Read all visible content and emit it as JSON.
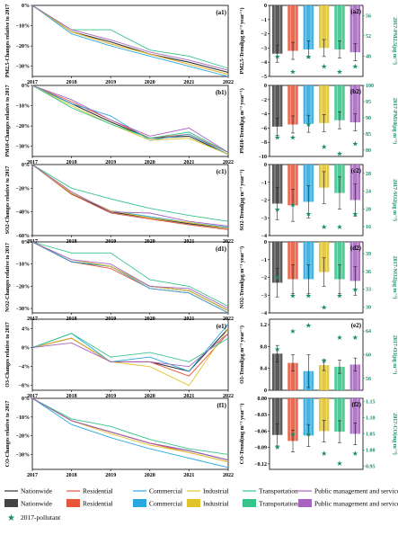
{
  "colors": {
    "nationwide": "#333333",
    "residential": "#e8553a",
    "commercial": "#29a8e0",
    "industrial": "#e0c32a",
    "transportation": "#35c48a",
    "public": "#a764c2",
    "star": "#1a8c6b"
  },
  "legend": {
    "nationwide": "Nationwide",
    "residential": "Residential",
    "commercial": "Commercial",
    "industrial": "Industrial",
    "transportation": "Transportation",
    "public": "Public management and service",
    "star": "2017-pollutant"
  },
  "chart_data": [
    {
      "type": "line",
      "panel": "(a1)",
      "ylabel": "PM2.5-Changes relative to 2017",
      "x": [
        "2017",
        "2018",
        "2019",
        "2020",
        "2021",
        "2022"
      ],
      "ylim": [
        -35,
        0
      ],
      "yticks": [
        0,
        -10,
        -20,
        -30
      ],
      "ytick_labels": [
        "0%",
        "-10%",
        "-20%",
        "-30%"
      ],
      "series": [
        {
          "name": "Nationwide",
          "values": [
            0,
            -13,
            -18,
            -24,
            -28,
            -33
          ]
        },
        {
          "name": "Residential",
          "values": [
            0,
            -13,
            -19,
            -24,
            -29,
            -34
          ]
        },
        {
          "name": "Commercial",
          "values": [
            0,
            -14,
            -20,
            -25,
            -30,
            -35
          ]
        },
        {
          "name": "Industrial",
          "values": [
            0,
            -13,
            -19,
            -24,
            -29,
            -34
          ]
        },
        {
          "name": "Transportation",
          "values": [
            0,
            -12,
            -12,
            -22,
            -25,
            -31
          ]
        },
        {
          "name": "Public management and service",
          "values": [
            0,
            -12,
            -17,
            -23,
            -27,
            -32
          ]
        }
      ]
    },
    {
      "type": "bar",
      "panel": "(a2)",
      "ylabel": "PM2.5-Trend(μg m⁻³ year⁻¹)",
      "y2label": "2017-PM2.5(μg m⁻³)",
      "ylim": [
        -5,
        0
      ],
      "yticks": [
        0,
        -1,
        -2,
        -3,
        -4,
        -5
      ],
      "y2lim": [
        44,
        58
      ],
      "y2ticks": [
        48,
        52,
        56
      ],
      "values": [
        -3.4,
        -3.2,
        -3.1,
        -3.0,
        -3.1,
        -3.3
      ],
      "errors": [
        0.6,
        0.6,
        0.6,
        0.6,
        0.6,
        0.6
      ],
      "pollutant_2017": [
        48,
        45,
        48,
        46,
        45,
        46
      ]
    },
    {
      "type": "line",
      "panel": "(b1)",
      "ylabel": "PM10-Changes relative to 2017",
      "x": [
        "2017",
        "2018",
        "2019",
        "2020",
        "2021",
        "2022"
      ],
      "ylim": [
        -35,
        0
      ],
      "yticks": [
        0,
        -10,
        -20,
        -30
      ],
      "ytick_labels": [
        "0%",
        "-10%",
        "-20%",
        "-30%"
      ],
      "series": [
        {
          "name": "Nationwide",
          "values": [
            0,
            -9,
            -18,
            -26,
            -25,
            -34
          ]
        },
        {
          "name": "Residential",
          "values": [
            0,
            -8,
            -17,
            -26,
            -24,
            -33
          ]
        },
        {
          "name": "Commercial",
          "values": [
            0,
            -9,
            -15,
            -27,
            -24,
            -34
          ]
        },
        {
          "name": "Industrial",
          "values": [
            0,
            -10,
            -19,
            -27,
            -26,
            -34
          ]
        },
        {
          "name": "Transportation",
          "values": [
            0,
            -11,
            -19,
            -26,
            -23,
            -33
          ]
        },
        {
          "name": "Public management and service",
          "values": [
            0,
            -7,
            -17,
            -25,
            -21,
            -33
          ]
        }
      ]
    },
    {
      "type": "bar",
      "panel": "(b2)",
      "ylabel": "PM10-Trend(μg m⁻³ year⁻¹)",
      "y2label": "2017-PM10(μg m⁻³)",
      "ylim": [
        -10,
        0
      ],
      "yticks": [
        0,
        -2,
        -4,
        -6,
        -8,
        -10
      ],
      "y2lim": [
        78,
        100
      ],
      "y2ticks": [
        80,
        85,
        90,
        95,
        100
      ],
      "values": [
        -5.8,
        -5.5,
        -5.4,
        -5.3,
        -4.9,
        -5.2
      ],
      "errors": [
        1.2,
        1.2,
        1.2,
        1.2,
        1.2,
        1.2
      ],
      "pollutant_2017": [
        84,
        84,
        88,
        81,
        79,
        82
      ]
    },
    {
      "type": "line",
      "panel": "(c1)",
      "ylabel": "SO2-Changes relative to 2017",
      "x": [
        "2017",
        "2018",
        "2019",
        "2020",
        "2021",
        "2022"
      ],
      "ylim": [
        -60,
        0
      ],
      "yticks": [
        0,
        -20,
        -40,
        -60
      ],
      "ytick_labels": [
        "0%",
        "-20%",
        "-40%",
        "-60%"
      ],
      "series": [
        {
          "name": "Nationwide",
          "values": [
            0,
            -25,
            -40,
            -45,
            -50,
            -54
          ]
        },
        {
          "name": "Residential",
          "values": [
            0,
            -25,
            -41,
            -46,
            -51,
            -55
          ]
        },
        {
          "name": "Commercial",
          "values": [
            0,
            -24,
            -39,
            -44,
            -49,
            -53
          ]
        },
        {
          "name": "Industrial",
          "values": [
            0,
            -24,
            -39,
            -45,
            -49,
            -54
          ]
        },
        {
          "name": "Transportation",
          "values": [
            0,
            -20,
            -29,
            -37,
            -43,
            -48
          ]
        },
        {
          "name": "Public management and service",
          "values": [
            0,
            -23,
            -40,
            -41,
            -48,
            -52
          ]
        }
      ]
    },
    {
      "type": "bar",
      "panel": "(c2)",
      "ylabel": "SO2-Trend(μg m⁻³ year⁻¹)",
      "y2label": "2017-SO2(μg m⁻³)",
      "ylim": [
        -4,
        0
      ],
      "yticks": [
        0,
        -1,
        -2,
        -3,
        -4
      ],
      "y2lim": [
        14,
        30
      ],
      "y2ticks": [
        16,
        20,
        24,
        28
      ],
      "values": [
        -2.2,
        -2.3,
        -2.1,
        -1.3,
        -1.6,
        -2.0
      ],
      "errors": [
        0.9,
        0.9,
        0.9,
        0.9,
        0.9,
        0.9
      ],
      "pollutant_2017": [
        20,
        21,
        19,
        16,
        16,
        19
      ]
    },
    {
      "type": "line",
      "panel": "(d1)",
      "ylabel": "NO2-Changes relative to 2017",
      "x": [
        "2017",
        "2018",
        "2019",
        "2020",
        "2021",
        "2022"
      ],
      "ylim": [
        -32,
        0
      ],
      "yticks": [
        0,
        -10,
        -20,
        -30
      ],
      "ytick_labels": [
        "0%",
        "-10%",
        "-20%",
        "-30%"
      ],
      "series": [
        {
          "name": "Nationwide",
          "values": [
            0,
            -9,
            -11,
            -20,
            -22,
            -31
          ]
        },
        {
          "name": "Residential",
          "values": [
            0,
            -9,
            -12,
            -21,
            -23,
            -32
          ]
        },
        {
          "name": "Commercial",
          "values": [
            0,
            -9,
            -11,
            -21,
            -23,
            -32
          ]
        },
        {
          "name": "Industrial",
          "values": [
            0,
            -8,
            -11,
            -20,
            -22,
            -31
          ]
        },
        {
          "name": "Transportation",
          "values": [
            0,
            -5,
            -5,
            -17,
            -20,
            -29
          ]
        },
        {
          "name": "Public management and service",
          "values": [
            0,
            -8,
            -10,
            -20,
            -21,
            -30
          ]
        }
      ]
    },
    {
      "type": "bar",
      "panel": "(d2)",
      "ylabel": "NO2-Trend(μg m⁻³ year⁻¹)",
      "y2label": "2017-NO2(μg m⁻³)",
      "ylim": [
        -4,
        0
      ],
      "yticks": [
        0,
        -1,
        -2,
        -3,
        -4
      ],
      "y2lim": [
        29,
        41
      ],
      "y2ticks": [
        30,
        33,
        36,
        39
      ],
      "values": [
        -2.3,
        -2.1,
        -2.1,
        -1.7,
        -2.1,
        -2.2
      ],
      "errors": [
        0.8,
        0.8,
        0.8,
        0.8,
        0.8,
        0.8
      ],
      "pollutant_2017": [
        35,
        32,
        32,
        30,
        32,
        33
      ]
    },
    {
      "type": "line",
      "panel": "(e1)",
      "ylabel": "O3-Changes relative to 2017",
      "x": [
        "2017",
        "2018",
        "2019",
        "2020",
        "2021",
        "2022"
      ],
      "ylim": [
        -9,
        6
      ],
      "yticks": [
        4,
        0,
        -4,
        -8
      ],
      "ytick_labels": [
        "4%",
        "0%",
        "-4%",
        "-8%"
      ],
      "series": [
        {
          "name": "Nationwide",
          "values": [
            0,
            2,
            -3,
            -3,
            -5,
            4
          ]
        },
        {
          "name": "Residential",
          "values": [
            0,
            2,
            -3,
            -3,
            -6,
            3
          ]
        },
        {
          "name": "Commercial",
          "values": [
            0,
            3,
            -3,
            -2,
            -5,
            5
          ]
        },
        {
          "name": "Industrial",
          "values": [
            0,
            2,
            -3,
            -4,
            -8,
            4
          ]
        },
        {
          "name": "Transportation",
          "values": [
            0,
            3,
            -2,
            -1,
            -3,
            2
          ]
        },
        {
          "name": "Public management and service",
          "values": [
            0,
            1,
            -3,
            -3,
            -4,
            3
          ]
        }
      ]
    },
    {
      "type": "bar",
      "panel": "(e2)",
      "ylabel": "O3-Trend(μg m⁻³ year⁻¹)",
      "y2label": "2017-O3(μg m⁻³)",
      "ylim": [
        0,
        1.3
      ],
      "yticks": [
        0,
        0.4,
        0.8,
        1.2
      ],
      "y2lim": [
        54,
        66
      ],
      "y2ticks": [
        56,
        60,
        64
      ],
      "values": [
        0.67,
        0.5,
        0.35,
        0.46,
        0.43,
        0.47
      ],
      "errors": [
        0.15,
        0.15,
        0.3,
        0.1,
        0.12,
        0.12
      ],
      "pollutant_2017": [
        61,
        64,
        65,
        59,
        63,
        63
      ]
    },
    {
      "type": "line",
      "panel": "(f1)",
      "ylabel": "CO-Changes relative to 2017",
      "x": [
        "2017",
        "2018",
        "2019",
        "2020",
        "2021",
        "2022"
      ],
      "ylim": [
        -38,
        0
      ],
      "yticks": [
        0,
        -10,
        -20,
        -30
      ],
      "ytick_labels": [
        "0%",
        "-10%",
        "-20%",
        "-30%"
      ],
      "series": [
        {
          "name": "Nationwide",
          "values": [
            0,
            -12,
            -18,
            -24,
            -28,
            -33
          ]
        },
        {
          "name": "Residential",
          "values": [
            0,
            -12,
            -18,
            -24,
            -29,
            -34
          ]
        },
        {
          "name": "Commercial",
          "values": [
            0,
            -14,
            -21,
            -27,
            -32,
            -37
          ]
        },
        {
          "name": "Industrial",
          "values": [
            0,
            -12,
            -19,
            -25,
            -29,
            -34
          ]
        },
        {
          "name": "Transportation",
          "values": [
            0,
            -11,
            -15,
            -22,
            -27,
            -30
          ]
        },
        {
          "name": "Public management and service",
          "values": [
            0,
            -12,
            -18,
            -24,
            -28,
            -33
          ]
        }
      ]
    },
    {
      "type": "bar",
      "panel": "(f2)",
      "ylabel": "CO-Trend(mg m⁻³ year⁻¹)",
      "y2label": "2017-CO(mg m⁻³)",
      "ylim": [
        -0.13,
        0
      ],
      "yticks": [
        0,
        -0.03,
        -0.06,
        -0.09,
        -0.12
      ],
      "ytick_labels": [
        "0.00",
        "-0.03",
        "-0.06",
        "-0.09",
        "-0.12"
      ],
      "y2lim": [
        0.94,
        1.16
      ],
      "y2ticks": [
        0.95,
        1.0,
        1.05,
        1.1,
        1.15
      ],
      "y2tick_labels": [
        "0.95",
        "1.00",
        "1.05",
        "1.10",
        "1.15"
      ],
      "values": [
        -0.067,
        -0.078,
        -0.068,
        -0.06,
        -0.061,
        -0.065
      ],
      "errors": [
        0.02,
        0.02,
        0.02,
        0.02,
        0.02,
        0.02
      ],
      "pollutant_2017": [
        1.01,
        1.05,
        1.05,
        0.99,
        0.96,
        0.99
      ]
    }
  ]
}
